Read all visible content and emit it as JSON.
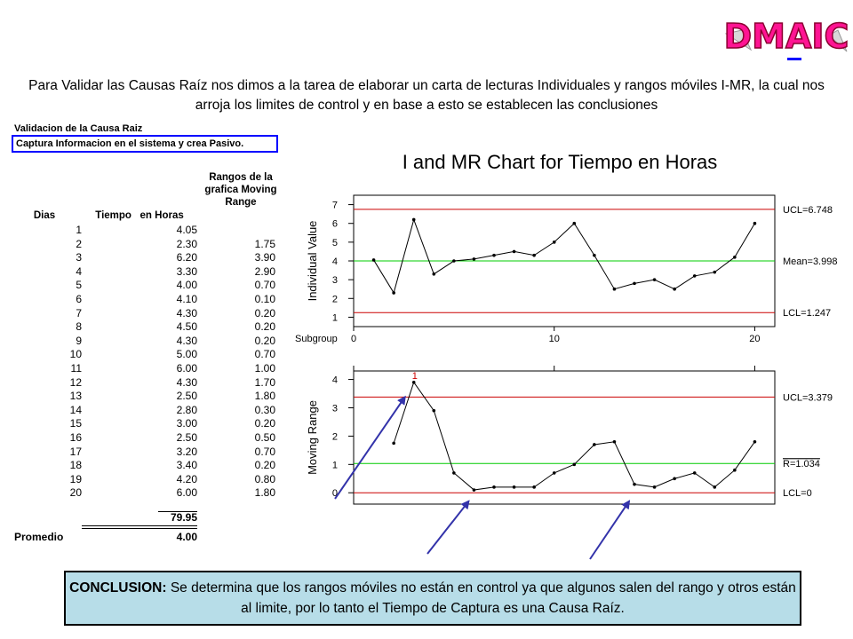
{
  "logo_text": "DMAIC",
  "intro": "Para Validar las Causas Raíz nos dimos a la tarea de elaborar un carta de lecturas Individuales y rangos móviles I-MR, la cual nos arroja los limites de control y en base a esto se establecen las conclusiones",
  "validation": {
    "title": "Validacion de la Causa Raiz",
    "box": "Captura Informacion en el sistema y crea Pasivo."
  },
  "table": {
    "headers": {
      "dias": "Dias",
      "tiempo": "Tiempo   en Horas",
      "rangos": "Rangos de la grafica Moving Range"
    },
    "dias": [
      "1",
      "2",
      "3",
      "4",
      "5",
      "6",
      "7",
      "8",
      "9",
      "10",
      "11",
      "12",
      "13",
      "14",
      "15",
      "16",
      "17",
      "18",
      "19",
      "20"
    ],
    "tiempo": [
      "4.05",
      "2.30",
      "6.20",
      "3.30",
      "4.00",
      "4.10",
      "4.30",
      "4.50",
      "4.30",
      "5.00",
      "6.00",
      "4.30",
      "2.50",
      "2.80",
      "3.00",
      "2.50",
      "3.20",
      "3.40",
      "4.20",
      "6.00"
    ],
    "rangos": [
      "",
      "1.75",
      "3.90",
      "2.90",
      "0.70",
      "0.10",
      "0.20",
      "0.20",
      "0.20",
      "0.70",
      "1.00",
      "1.70",
      "1.80",
      "0.30",
      "0.20",
      "0.50",
      "0.70",
      "0.20",
      "0.80",
      "1.80"
    ],
    "total": "79.95",
    "promedio_label": "Promedio",
    "promedio_value": "4.00"
  },
  "chart_data": {
    "type": "line",
    "title": "I and MR Chart for Tiempo  en Horas",
    "xlabel": "Subgroup",
    "x_ticks": [
      "0",
      "10",
      "20"
    ],
    "xlim": [
      0,
      21
    ],
    "individual": {
      "ylabel": "Individual Value",
      "ylim": [
        0.5,
        7.5
      ],
      "y_ticks": [
        "1",
        "2",
        "3",
        "4",
        "5",
        "6",
        "7"
      ],
      "values": [
        4.05,
        2.3,
        6.2,
        3.3,
        4.0,
        4.1,
        4.3,
        4.5,
        4.3,
        5.0,
        6.0,
        4.3,
        2.5,
        2.8,
        3.0,
        2.5,
        3.2,
        3.4,
        4.2,
        6.0
      ],
      "ucl": 6.748,
      "mean": 3.998,
      "lcl": 1.247,
      "ucl_label": "UCL=6.748",
      "mean_label": "Mean=3.998",
      "lcl_label": "LCL=1.247"
    },
    "moving_range": {
      "ylabel": "Moving Range",
      "ylim": [
        -0.4,
        4.3
      ],
      "y_ticks": [
        "0",
        "1",
        "2",
        "3",
        "4"
      ],
      "values": [
        1.75,
        3.9,
        2.9,
        0.7,
        0.1,
        0.2,
        0.2,
        0.2,
        0.7,
        1.0,
        1.7,
        1.8,
        0.3,
        0.2,
        0.5,
        0.7,
        0.2,
        0.8,
        1.8
      ],
      "ucl": 3.379,
      "rbar": 1.034,
      "lcl": 0,
      "ucl_label": "UCL=3.379",
      "rbar_label": "R=1.034",
      "lcl_label": "LCL=0",
      "out_of_control_marker": "1"
    },
    "colors": {
      "limit": "#cc0000",
      "center": "#00cc00",
      "arrow": "#3333aa"
    }
  },
  "conclusion": {
    "label": "CONCLUSION:",
    "text": " Se determina que los rangos móviles no están en control ya que algunos salen del rango y otros están al limite, por lo tanto el Tiempo de Captura es una Causa Raíz."
  }
}
